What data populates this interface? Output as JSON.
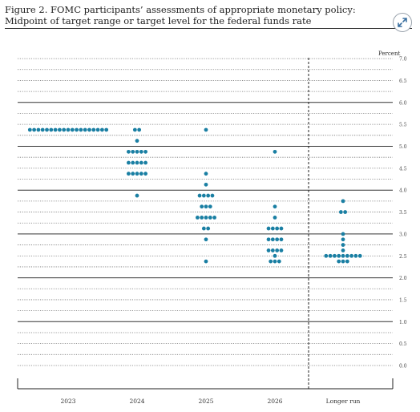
{
  "figure": {
    "title": "Figure 2. FOMC participants’ assessments of appropriate monetary policy: Midpoint of target range or target level for the federal funds rate",
    "expand_icon": "expand-arrows-icon"
  },
  "chart_data": {
    "type": "scatter",
    "subtype": "dot-plot",
    "title": "",
    "xlabel": "",
    "ylabel": "Percent",
    "categories": [
      "2023",
      "2024",
      "2025",
      "2026",
      "Longer run"
    ],
    "ylim": [
      0,
      7.0
    ],
    "yticks": [
      "0.0",
      "0.5",
      "1.0",
      "1.5",
      "2.0",
      "2.5",
      "3.0",
      "3.5",
      "4.0",
      "4.5",
      "5.0",
      "5.5",
      "6.0",
      "6.5",
      "7.0"
    ],
    "grid": true,
    "dot_color": "#1a7fa3",
    "points": {
      "2023": [
        {
          "value": 5.375,
          "count": 19
        }
      ],
      "2024": [
        {
          "value": 5.375,
          "count": 2
        },
        {
          "value": 5.125,
          "count": 1
        },
        {
          "value": 4.875,
          "count": 5
        },
        {
          "value": 4.625,
          "count": 5
        },
        {
          "value": 4.375,
          "count": 5
        },
        {
          "value": 3.875,
          "count": 1
        }
      ],
      "2025": [
        {
          "value": 5.375,
          "count": 1
        },
        {
          "value": 4.375,
          "count": 1
        },
        {
          "value": 4.125,
          "count": 1
        },
        {
          "value": 3.875,
          "count": 4
        },
        {
          "value": 3.625,
          "count": 3
        },
        {
          "value": 3.375,
          "count": 5
        },
        {
          "value": 3.125,
          "count": 2
        },
        {
          "value": 2.875,
          "count": 1
        },
        {
          "value": 2.375,
          "count": 1
        }
      ],
      "2026": [
        {
          "value": 4.875,
          "count": 1
        },
        {
          "value": 3.625,
          "count": 1
        },
        {
          "value": 3.375,
          "count": 1
        },
        {
          "value": 3.125,
          "count": 4
        },
        {
          "value": 2.875,
          "count": 4
        },
        {
          "value": 2.625,
          "count": 4
        },
        {
          "value": 2.5,
          "count": 1
        },
        {
          "value": 2.375,
          "count": 3
        }
      ],
      "Longer run": [
        {
          "value": 3.75,
          "count": 1
        },
        {
          "value": 3.5,
          "count": 2
        },
        {
          "value": 3.0,
          "count": 1
        },
        {
          "value": 2.875,
          "count": 1
        },
        {
          "value": 2.75,
          "count": 1
        },
        {
          "value": 2.625,
          "count": 1
        },
        {
          "value": 2.5,
          "count": 9
        },
        {
          "value": 2.375,
          "count": 3
        }
      ]
    }
  }
}
